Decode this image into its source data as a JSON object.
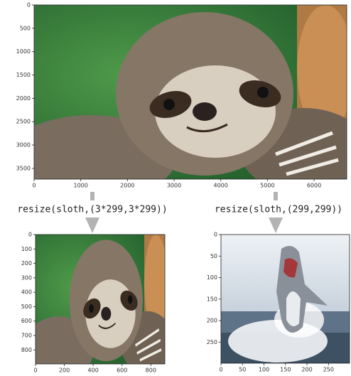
{
  "panels": [
    {
      "xlim": [
        0,
        6700
      ],
      "ylim": [
        0,
        3730
      ],
      "xticks": [
        0,
        1000,
        2000,
        3000,
        4000,
        5000,
        6000
      ],
      "yticks": [
        0,
        500,
        1000,
        1500,
        2000,
        2500,
        3000,
        3500
      ]
    },
    {
      "xlim": [
        0,
        897
      ],
      "ylim": [
        0,
        897
      ],
      "xticks": [
        0,
        200,
        400,
        600,
        800
      ],
      "yticks": [
        0,
        100,
        200,
        300,
        400,
        500,
        600,
        700,
        800
      ]
    },
    {
      "xlim": [
        0,
        299
      ],
      "ylim": [
        0,
        299
      ],
      "xticks": [
        0,
        50,
        100,
        150,
        200,
        250
      ],
      "yticks": [
        0,
        50,
        100,
        150,
        200,
        250
      ]
    }
  ],
  "captions": [
    "resize(sloth,(3*299,3*299))",
    "resize(sloth,(299,299))"
  ]
}
